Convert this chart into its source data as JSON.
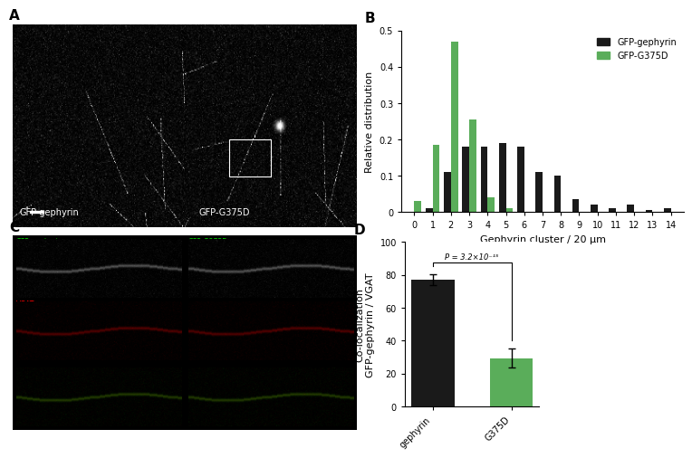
{
  "panel_B": {
    "categories": [
      0,
      1,
      2,
      3,
      4,
      5,
      6,
      7,
      8,
      9,
      10,
      11,
      12,
      13,
      14
    ],
    "gfp_gephyrin": [
      0.0,
      0.01,
      0.11,
      0.18,
      0.18,
      0.19,
      0.18,
      0.11,
      0.1,
      0.035,
      0.02,
      0.01,
      0.02,
      0.005,
      0.01
    ],
    "gfp_g375d": [
      0.03,
      0.185,
      0.47,
      0.255,
      0.04,
      0.01,
      0.0,
      0.0,
      0.0,
      0.0,
      0.0,
      0.0,
      0.0,
      0.0,
      0.0
    ],
    "bar_width": 0.38,
    "color_gephyrin": "#1a1a1a",
    "color_g375d": "#5aad5a",
    "ylabel": "Relative distribution",
    "xlabel": "Gephyrin cluster / 20 μm",
    "ylim": [
      0,
      0.5
    ],
    "yticks": [
      0.0,
      0.1,
      0.2,
      0.3,
      0.4,
      0.5
    ],
    "ytick_labels": [
      "0",
      "0.1",
      "0.2",
      "0.3",
      "0.4",
      "0.5"
    ],
    "legend_gephyrin": "GFP-gephyrin",
    "legend_g375d": "GFP-G375D"
  },
  "panel_D": {
    "categories": [
      "gephyrin",
      "G375D"
    ],
    "values": [
      77.0,
      29.5
    ],
    "errors": [
      3.5,
      5.5
    ],
    "colors": [
      "#1a1a1a",
      "#5aad5a"
    ],
    "ylabel": "Co-localization\nGFP-gephyrin / VGAT",
    "ylim": [
      0,
      100
    ],
    "yticks": [
      0,
      20,
      40,
      60,
      80,
      100
    ],
    "pvalue_text": "P = 3.2×10⁻¹⁵",
    "bar_width": 0.55
  },
  "background_color": "#ffffff",
  "tick_fontsize": 7,
  "label_fontsize": 8,
  "panel_label_fontsize": 11,
  "img_label_fontsize": 7
}
